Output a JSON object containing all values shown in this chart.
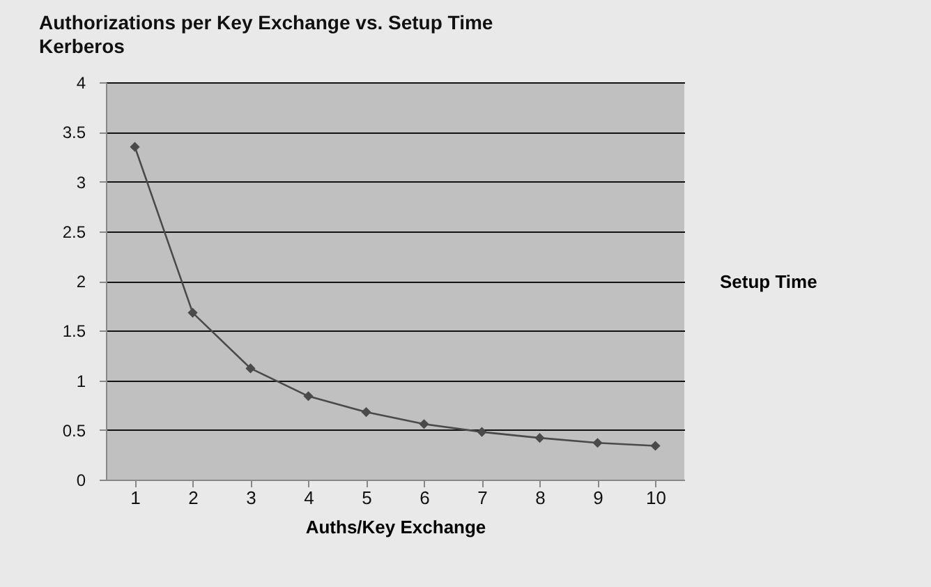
{
  "chart_data": {
    "type": "line",
    "title": "Authorizations per Key Exchange vs. Setup Time",
    "subtitle": "Kerberos",
    "xlabel": "Auths/Key Exchange",
    "ylabel": "Setup Time",
    "categories": [
      "1",
      "2",
      "3",
      "4",
      "5",
      "6",
      "7",
      "8",
      "9",
      "10"
    ],
    "series": [
      {
        "color": "#4a4a4a",
        "values": [
          3.35,
          1.68,
          1.12,
          0.84,
          0.68,
          0.56,
          0.48,
          0.42,
          0.37,
          0.34
        ]
      }
    ],
    "ylim": [
      0,
      4
    ],
    "yticks": [
      0,
      0.5,
      1,
      1.5,
      2,
      2.5,
      3,
      3.5,
      4
    ],
    "grid": "y",
    "legend": false,
    "marker": "diamond",
    "line_style": "solid"
  }
}
